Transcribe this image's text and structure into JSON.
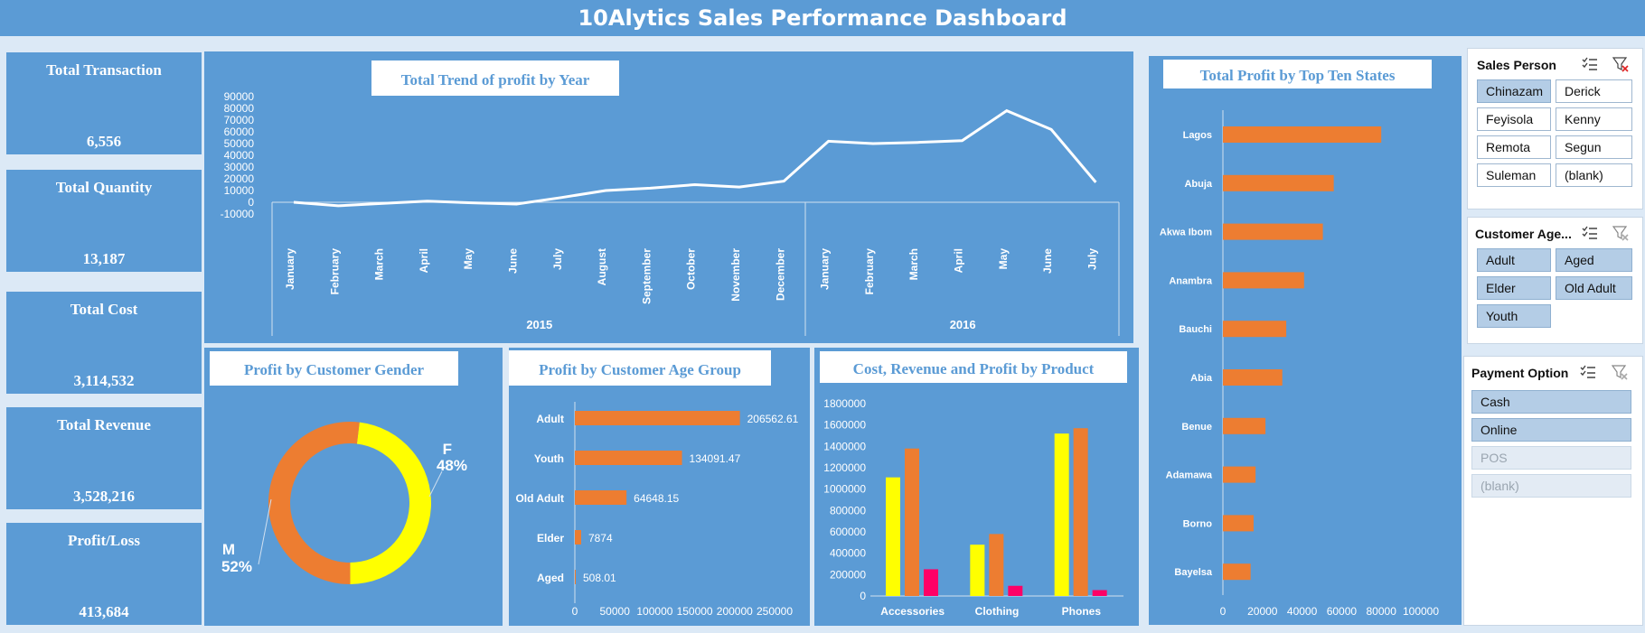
{
  "header": {
    "title": "10Alytics Sales Performance Dashboard"
  },
  "kpis": [
    {
      "label": "Total Transaction",
      "value": "6,556"
    },
    {
      "label": "Total Quantity",
      "value": "13,187"
    },
    {
      "label": "Total Cost",
      "value": "3,114,532"
    },
    {
      "label": "Total Revenue",
      "value": "3,528,216"
    },
    {
      "label": "Profit/Loss",
      "value": "413,684"
    }
  ],
  "charts": {
    "trend_title": "Total Trend of profit by Year",
    "gender_title": "Profit by Customer Gender",
    "age_title": "Profit by Customer Age Group",
    "product_title": "Cost, Revenue and Profit by Product",
    "states_title": "Total Profit by Top Ten States"
  },
  "chart_data": [
    {
      "type": "line",
      "title": "Total Trend of profit by Year",
      "x": [
        "January",
        "February",
        "March",
        "April",
        "May",
        "June",
        "July",
        "August",
        "September",
        "October",
        "November",
        "December",
        "January",
        "February",
        "March",
        "April",
        "May",
        "June",
        "July"
      ],
      "groups": [
        {
          "label": "2015",
          "count": 12
        },
        {
          "label": "2016",
          "count": 7
        }
      ],
      "values": [
        0,
        -3000,
        -1000,
        1000,
        -500,
        -1500,
        4000,
        10000,
        12000,
        15000,
        13000,
        18000,
        52000,
        50000,
        51000,
        52500,
        78000,
        62000,
        17000
      ],
      "y_ticks": [
        "90000",
        "80000",
        "70000",
        "60000",
        "50000",
        "40000",
        "30000",
        "20000",
        "10000",
        "0",
        "-10000"
      ],
      "ylim": [
        -10000,
        90000
      ],
      "color": "#ffffff"
    },
    {
      "type": "pie",
      "title": "Profit by Customer Gender",
      "slices": [
        {
          "name": "F",
          "pct": 48,
          "label": "48%",
          "color": "#ffff00"
        },
        {
          "name": "M",
          "pct": 52,
          "label": "52%",
          "color": "#ed7d31"
        }
      ]
    },
    {
      "type": "bar",
      "title": "Profit by Customer Age Group",
      "categories": [
        "Adult",
        "Youth",
        "Old Adult",
        "Elder",
        "Aged"
      ],
      "values": [
        206562.61,
        134091.47,
        64648.15,
        7874,
        508.01
      ],
      "labels": [
        "206562.61",
        "134091.47",
        "64648.15",
        "7874",
        "508.01"
      ],
      "x_ticks": [
        "0",
        "50000",
        "100000",
        "150000",
        "200000",
        "250000"
      ],
      "xlim": [
        0,
        250000
      ],
      "color": "#ed7d31"
    },
    {
      "type": "bar",
      "title": "Cost, Revenue and Profit by Product",
      "categories": [
        "Accessories",
        "Clothing",
        "Phones"
      ],
      "series": [
        {
          "values": [
            1110000,
            480000,
            1520000
          ],
          "color": "#ffff00"
        },
        {
          "values": [
            1380000,
            580000,
            1570000
          ],
          "color": "#ed7d31"
        },
        {
          "values": [
            250000,
            95000,
            55000
          ],
          "color": "#ff0066"
        }
      ],
      "y_ticks": [
        "1800000",
        "1600000",
        "1400000",
        "1200000",
        "1000000",
        "800000",
        "600000",
        "400000",
        "200000",
        "0"
      ],
      "ylim": [
        0,
        1800000
      ]
    },
    {
      "type": "bar",
      "title": "Total Profit by Top Ten States",
      "categories": [
        "Lagos",
        "Abuja",
        "Akwa Ibom",
        "Anambra",
        "Bauchi",
        "Abia",
        "Benue",
        "Adamawa",
        "Borno",
        "Bayelsa"
      ],
      "values": [
        80000,
        56000,
        50500,
        41000,
        32000,
        30000,
        21500,
        16500,
        15500,
        14000
      ],
      "x_ticks": [
        "0",
        "20000",
        "40000",
        "60000",
        "80000",
        "100000"
      ],
      "xlim": [
        0,
        100000
      ],
      "color": "#ed7d31"
    }
  ],
  "slicers": {
    "sales_person": {
      "title": "Sales Person",
      "items": [
        {
          "label": "Chinazam",
          "state": "sel"
        },
        {
          "label": "Derick",
          "state": ""
        },
        {
          "label": "Feyisola",
          "state": ""
        },
        {
          "label": "Kenny",
          "state": ""
        },
        {
          "label": "Remota",
          "state": ""
        },
        {
          "label": "Segun",
          "state": ""
        },
        {
          "label": "Suleman",
          "state": ""
        },
        {
          "label": "(blank)",
          "state": ""
        }
      ]
    },
    "customer_age": {
      "title": "Customer Age...",
      "items": [
        {
          "label": "Adult",
          "state": "sel"
        },
        {
          "label": "Aged",
          "state": "sel"
        },
        {
          "label": "Elder",
          "state": "sel"
        },
        {
          "label": "Old Adult",
          "state": "sel"
        },
        {
          "label": "Youth",
          "state": "sel"
        }
      ]
    },
    "payment": {
      "title": "Payment Option",
      "items": [
        {
          "label": "Cash",
          "state": "sel"
        },
        {
          "label": "Online",
          "state": "sel"
        },
        {
          "label": "POS",
          "state": "dim"
        },
        {
          "label": "(blank)",
          "state": "dim"
        }
      ]
    }
  }
}
